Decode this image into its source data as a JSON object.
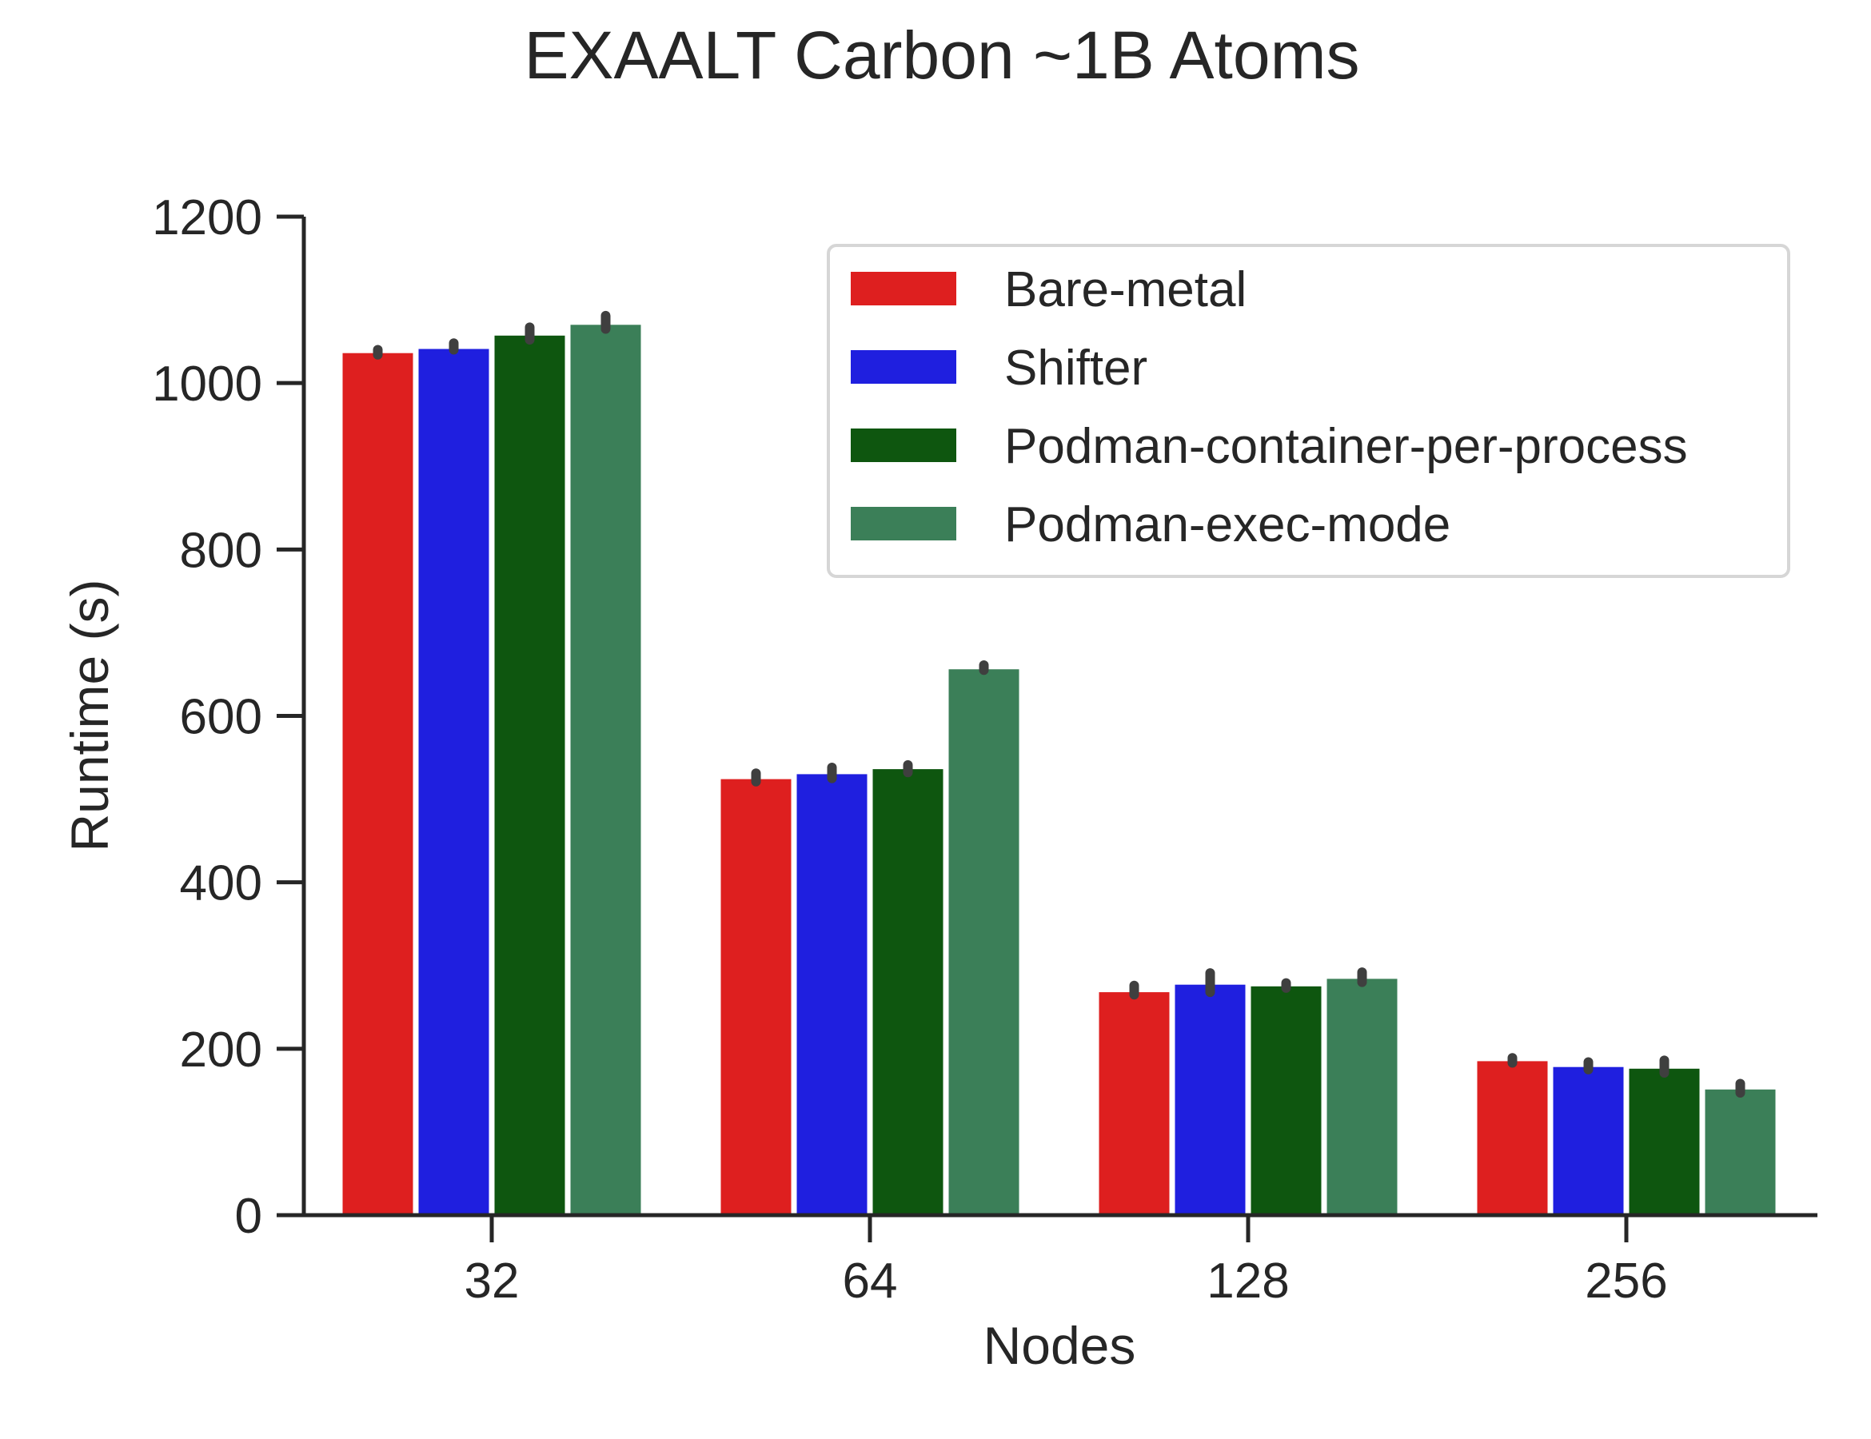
{
  "chart_data": {
    "type": "bar",
    "title": "EXAALT Carbon ~1B Atoms",
    "xlabel": "Nodes",
    "ylabel": "Runtime (s)",
    "categories": [
      "32",
      "64",
      "128",
      "256"
    ],
    "ylim": [
      0,
      1200
    ],
    "yticks": [
      0,
      200,
      400,
      600,
      800,
      1000,
      1200
    ],
    "grid": false,
    "legend_position": "top-right",
    "series": [
      {
        "name": "Bare-metal",
        "color": "#de1f1f",
        "values": [
          1036,
          524,
          268,
          185
        ],
        "err_low": [
          1034,
          521,
          265,
          183
        ],
        "err_high": [
          1040,
          531,
          276,
          189
        ]
      },
      {
        "name": "Shifter",
        "color": "#1f1fdf",
        "values": [
          1041,
          530,
          277,
          178
        ],
        "err_low": [
          1040,
          525,
          268,
          175
        ],
        "err_high": [
          1048,
          538,
          291,
          184
        ]
      },
      {
        "name": "Podman-container-per-process",
        "color": "#0e560f",
        "values": [
          1057,
          536,
          275,
          176
        ],
        "err_low": [
          1052,
          532,
          273,
          171
        ],
        "err_high": [
          1067,
          541,
          279,
          186
        ]
      },
      {
        "name": "Podman-exec-mode",
        "color": "#3b7f58",
        "values": [
          1070,
          656,
          284,
          151
        ],
        "err_low": [
          1065,
          655,
          280,
          147
        ],
        "err_high": [
          1081,
          661,
          292,
          158
        ]
      }
    ]
  }
}
